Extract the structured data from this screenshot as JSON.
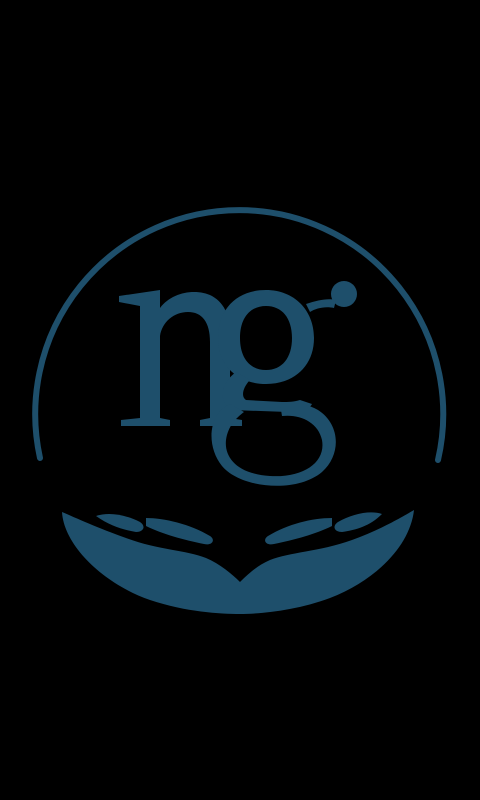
{
  "screen": {
    "type": "splash",
    "background_color": "#000000"
  },
  "logo": {
    "monogram": "ng",
    "brand_color": "#1e4f6b",
    "icon": "ng-hands-circle-logo-icon"
  }
}
